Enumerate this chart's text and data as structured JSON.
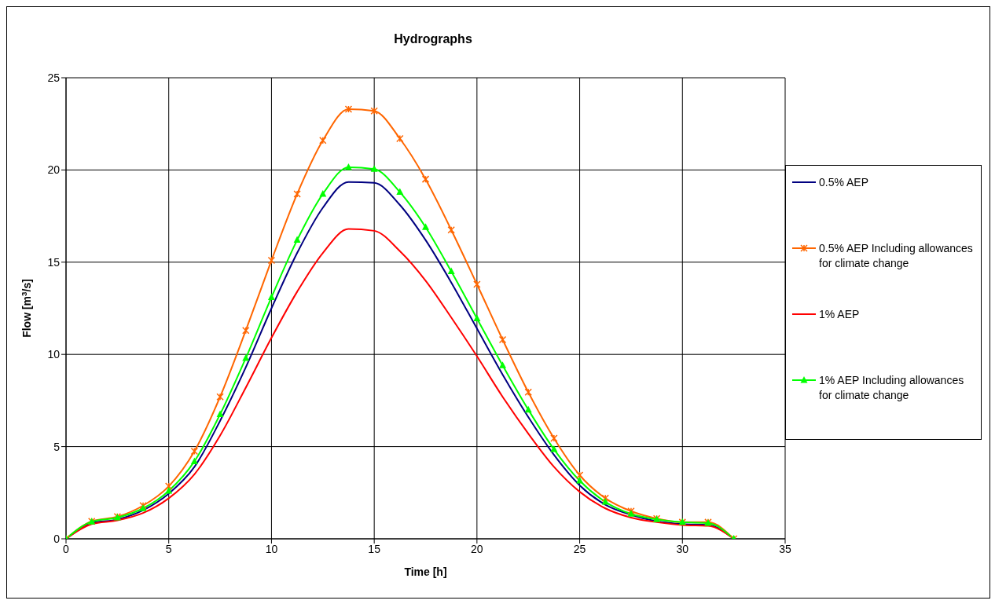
{
  "chart_data": {
    "type": "line",
    "title": "Hydrographs",
    "xlabel": "Time [h]",
    "ylabel": "Flow [m$^{3}$/s]",
    "x": [
      0,
      1.25,
      2.5,
      3.75,
      5,
      6.25,
      7.5,
      8.75,
      10,
      11.25,
      12.5,
      13.75,
      15,
      16.25,
      17.5,
      18.75,
      20,
      21.25,
      22.5,
      23.75,
      25,
      26.25,
      27.5,
      28.75,
      30,
      31.25,
      32.5
    ],
    "xlim": [
      0,
      35
    ],
    "xticks": [
      0,
      5,
      10,
      15,
      20,
      25,
      30,
      35
    ],
    "ylim": [
      0,
      25
    ],
    "yticks": [
      0,
      5,
      10,
      15,
      20,
      25
    ],
    "grid": true,
    "legend": "right",
    "line_style": "solid",
    "series": [
      {
        "name": "0.5% AEP",
        "color": "#000080",
        "marker": "none",
        "values": [
          0,
          0.85,
          1.05,
          1.55,
          2.45,
          3.9,
          6.4,
          9.3,
          12.5,
          15.5,
          17.95,
          19.35,
          19.3,
          18.1,
          16.2,
          13.9,
          11.4,
          8.9,
          6.6,
          4.55,
          2.9,
          1.85,
          1.3,
          0.95,
          0.8,
          0.75,
          0
        ]
      },
      {
        "name": "0.5% AEP Including allowances for climate change",
        "color": "#ff6600",
        "marker": "cross",
        "values": [
          0,
          0.95,
          1.2,
          1.8,
          2.85,
          4.75,
          7.7,
          11.3,
          15.1,
          18.7,
          21.6,
          23.3,
          23.2,
          21.7,
          19.5,
          16.75,
          13.8,
          10.8,
          7.95,
          5.45,
          3.45,
          2.2,
          1.5,
          1.1,
          0.9,
          0.9,
          0
        ]
      },
      {
        "name": "1% AEP",
        "color": "#ff0000",
        "marker": "none",
        "values": [
          0,
          0.8,
          1.0,
          1.4,
          2.2,
          3.5,
          5.6,
          8.2,
          10.9,
          13.4,
          15.5,
          16.8,
          16.7,
          15.6,
          14.0,
          12.0,
          9.9,
          7.7,
          5.7,
          3.9,
          2.55,
          1.65,
          1.15,
          0.9,
          0.75,
          0.7,
          0
        ]
      },
      {
        "name": "1% AEP Including allowances for climate change",
        "color": "#00ff00",
        "marker": "triangle",
        "values": [
          0,
          0.93,
          1.15,
          1.65,
          2.6,
          4.2,
          6.75,
          9.8,
          13.1,
          16.2,
          18.7,
          20.15,
          20.05,
          18.8,
          16.9,
          14.5,
          11.95,
          9.4,
          7.0,
          4.85,
          3.15,
          2.0,
          1.35,
          1.05,
          0.9,
          0.85,
          0
        ]
      }
    ]
  }
}
